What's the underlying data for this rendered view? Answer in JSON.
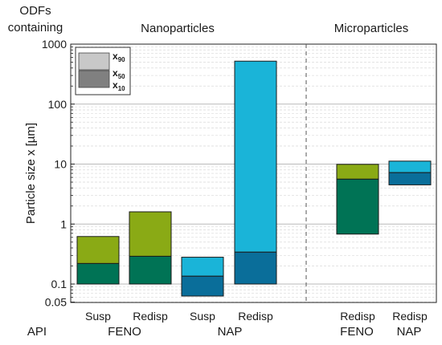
{
  "chart_data": {
    "type": "bar",
    "subtype": "floating-range-bar",
    "ylabel": "Particle size x [µm]",
    "yscale": "log",
    "ylim": [
      0.05,
      1000
    ],
    "yticks": [
      {
        "value": 0.05,
        "label": "0.05"
      },
      {
        "value": 0.1,
        "label": "0.1"
      },
      {
        "value": 1,
        "label": "1"
      },
      {
        "value": 10,
        "label": "10"
      },
      {
        "value": 100,
        "label": "100"
      },
      {
        "value": 1000,
        "label": "1000"
      }
    ],
    "grid": true,
    "corner_label": [
      "ODFs",
      "containing"
    ],
    "section_titles": [
      "Nanoparticles",
      "Microparticles"
    ],
    "legend": {
      "position": "top-left",
      "entries": [
        {
          "base": "x",
          "sub": "90"
        },
        {
          "base": "x",
          "sub": "50"
        },
        {
          "base": "x",
          "sub": "10"
        }
      ]
    },
    "row_labels": {
      "api": "API"
    },
    "groups": [
      {
        "api": "FENO",
        "section": "nano",
        "bars": [
          0,
          1
        ]
      },
      {
        "api": "NAP",
        "section": "nano",
        "bars": [
          2,
          3
        ]
      },
      {
        "api": "FENO",
        "section": "micro",
        "bars": [
          4
        ]
      },
      {
        "api": "NAP",
        "section": "micro",
        "bars": [
          5
        ]
      }
    ],
    "bars": [
      {
        "category": "Susp",
        "api": "FENO",
        "x10": 0.1,
        "x50": 0.22,
        "x90": 0.62
      },
      {
        "category": "Redisp",
        "api": "FENO",
        "x10": 0.1,
        "x50": 0.29,
        "x90": 1.6
      },
      {
        "category": "Susp",
        "api": "NAP",
        "x10": 0.063,
        "x50": 0.135,
        "x90": 0.28
      },
      {
        "category": "Redisp",
        "api": "NAP",
        "x10": 0.1,
        "x50": 0.34,
        "x90": 520
      },
      {
        "category": "Redisp",
        "api": "FENO",
        "x10": 0.68,
        "x50": 5.6,
        "x90": 9.9
      },
      {
        "category": "Redisp",
        "api": "NAP",
        "x10": 4.5,
        "x50": 7.2,
        "x90": 11.2
      }
    ],
    "colors": {
      "feno_upper": "#8aaa15",
      "feno_lower": "#007355",
      "nap_upper": "#1ab4d8",
      "nap_lower": "#0a6e9a",
      "legend_upper": "#c8c8c8",
      "legend_lower": "#808080",
      "grid": "#cfcfcf",
      "divider": "#555555"
    }
  }
}
